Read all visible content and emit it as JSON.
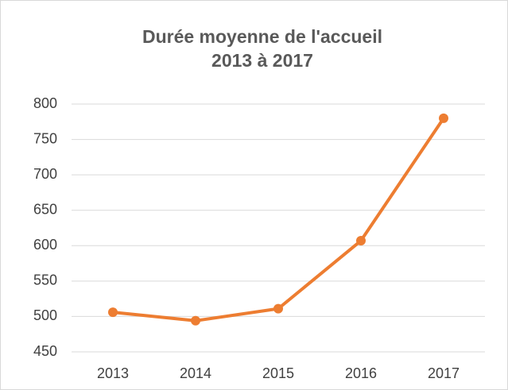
{
  "chart_data": {
    "type": "line",
    "title": [
      "Durée moyenne de l'accueil",
      "2013 à 2017"
    ],
    "categories": [
      "2013",
      "2014",
      "2015",
      "2016",
      "2017"
    ],
    "series": [
      {
        "color": "#ed7d31",
        "values": [
          506,
          494,
          511,
          607,
          780
        ]
      }
    ],
    "ylim": [
      450,
      800
    ],
    "yticks": [
      450,
      500,
      550,
      600,
      650,
      700,
      750,
      800
    ],
    "grid": true
  }
}
